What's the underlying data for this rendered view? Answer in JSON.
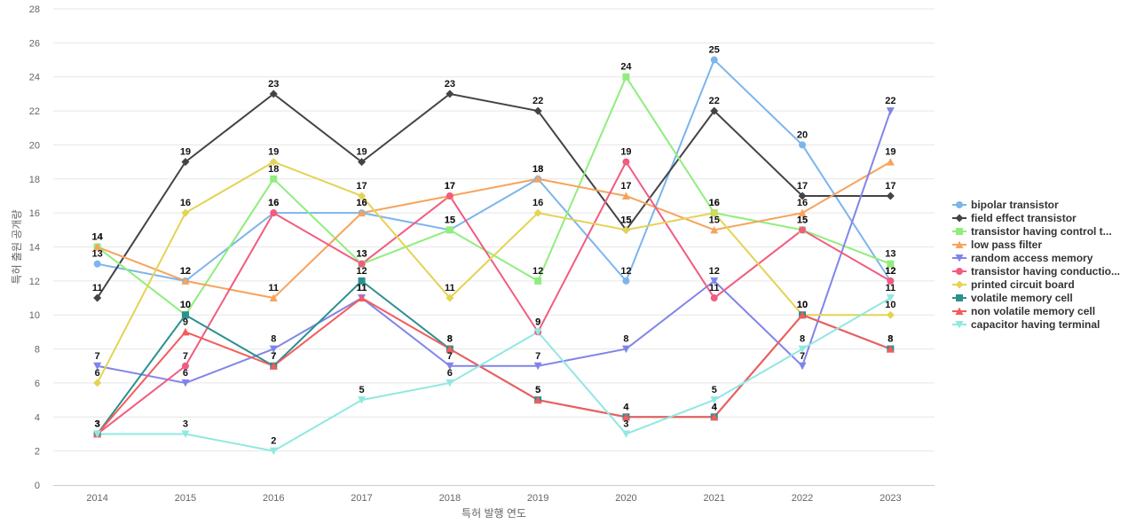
{
  "chart_data": {
    "type": "line",
    "xlabel": "특허 발행 연도",
    "ylabel": "특허 출원 공개량",
    "ylim": [
      0,
      28
    ],
    "yticks": [
      0,
      2,
      4,
      6,
      8,
      10,
      12,
      14,
      16,
      18,
      20,
      22,
      24,
      26,
      28
    ],
    "grid": "horizontal",
    "legend_position": "right",
    "categories": [
      "2014",
      "2015",
      "2016",
      "2017",
      "2018",
      "2019",
      "2020",
      "2021",
      "2022",
      "2023"
    ],
    "series": [
      {
        "name": "bipolar transistor",
        "color": "#7cb5ec",
        "marker": "circle",
        "values": [
          13,
          12,
          16,
          16,
          15,
          18,
          12,
          25,
          20,
          12
        ]
      },
      {
        "name": "field effect transistor",
        "color": "#434348",
        "marker": "diamond",
        "values": [
          11,
          19,
          23,
          19,
          23,
          22,
          15,
          22,
          17,
          17
        ]
      },
      {
        "name": "transistor having control t...",
        "color": "#90ed7d",
        "marker": "square",
        "values": [
          14,
          10,
          18,
          13,
          15,
          12,
          24,
          16,
          15,
          13
        ]
      },
      {
        "name": "low pass filter",
        "color": "#f7a35c",
        "marker": "triangle",
        "values": [
          14,
          12,
          11,
          16,
          17,
          18,
          17,
          15,
          16,
          19
        ]
      },
      {
        "name": "random access memory",
        "color": "#8085e9",
        "marker": "triangle-down",
        "values": [
          7,
          6,
          8,
          11,
          7,
          7,
          8,
          12,
          7,
          22
        ]
      },
      {
        "name": "transistor having conductio...",
        "color": "#f15c80",
        "marker": "circle",
        "values": [
          3,
          7,
          16,
          13,
          17,
          9,
          19,
          11,
          15,
          12
        ]
      },
      {
        "name": "printed circuit board",
        "color": "#e4d354",
        "marker": "diamond",
        "values": [
          6,
          16,
          19,
          17,
          11,
          16,
          15,
          16,
          10,
          10
        ]
      },
      {
        "name": "volatile memory cell",
        "color": "#2b908f",
        "marker": "square",
        "values": [
          3,
          10,
          7,
          12,
          8,
          5,
          4,
          4,
          10,
          8
        ]
      },
      {
        "name": "non volatile memory cell",
        "color": "#f45b5b",
        "marker": "triangle",
        "values": [
          3,
          9,
          7,
          11,
          8,
          5,
          4,
          4,
          10,
          8
        ]
      },
      {
        "name": "capacitor having terminal",
        "color": "#91e8e1",
        "marker": "triangle-down",
        "values": [
          3,
          3,
          2,
          5,
          6,
          9,
          3,
          5,
          8,
          11
        ]
      }
    ]
  }
}
